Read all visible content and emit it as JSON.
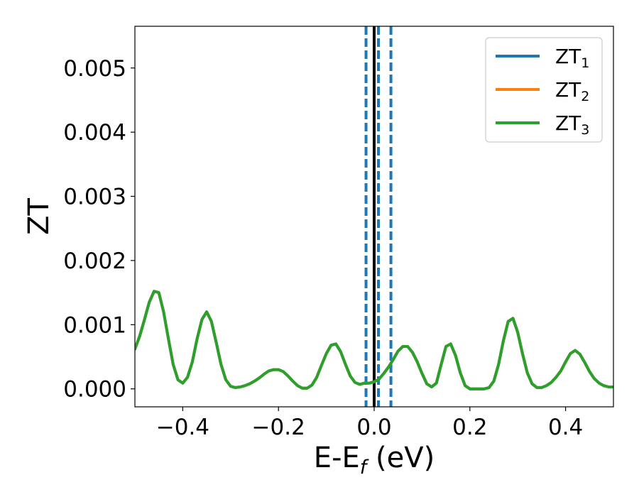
{
  "chart_data": {
    "type": "line",
    "xlabel_main": "E-E",
    "xlabel_sub": "f",
    "xlabel_unit": " (eV)",
    "ylabel": "ZT",
    "xlim": [
      -0.5,
      0.5
    ],
    "ylim": [
      -0.00028,
      0.00565
    ],
    "x_ticks": [
      -0.4,
      -0.2,
      0.0,
      0.2,
      0.4
    ],
    "x_tick_labels": [
      "−0.4",
      "−0.2",
      "0.0",
      "0.2",
      "0.4"
    ],
    "y_ticks": [
      0.0,
      0.001,
      0.002,
      0.003,
      0.004,
      0.005
    ],
    "y_tick_labels": [
      "0.000",
      "0.001",
      "0.002",
      "0.003",
      "0.004",
      "0.005"
    ],
    "grid": false,
    "legend_placement": "top-right",
    "colors": {
      "ZT1": "#1f77b4",
      "ZT2": "#ff7f0e",
      "ZT3": "#2ca02c",
      "fermi": "#000000",
      "dashed": "#1f77b4"
    },
    "vertical_lines": [
      {
        "x": 0.0,
        "style": "solid",
        "color": "#000000"
      },
      {
        "x": -0.017,
        "style": "dashed",
        "color": "#1f77b4"
      },
      {
        "x": 0.009,
        "style": "dashed",
        "color": "#1f77b4"
      },
      {
        "x": 0.035,
        "style": "dashed",
        "color": "#1f77b4"
      }
    ],
    "series": [
      {
        "name_main": "ZT",
        "name_sub": "1",
        "color": "#1f77b4"
      },
      {
        "name_main": "ZT",
        "name_sub": "2",
        "color": "#ff7f0e"
      },
      {
        "name_main": "ZT",
        "name_sub": "3",
        "color": "#2ca02c"
      }
    ],
    "x": [
      -0.5,
      -0.49,
      -0.48,
      -0.47,
      -0.46,
      -0.45,
      -0.44,
      -0.43,
      -0.42,
      -0.41,
      -0.4,
      -0.39,
      -0.38,
      -0.37,
      -0.36,
      -0.35,
      -0.34,
      -0.33,
      -0.32,
      -0.31,
      -0.3,
      -0.29,
      -0.28,
      -0.27,
      -0.26,
      -0.25,
      -0.24,
      -0.23,
      -0.22,
      -0.21,
      -0.2,
      -0.19,
      -0.18,
      -0.17,
      -0.16,
      -0.15,
      -0.14,
      -0.13,
      -0.12,
      -0.11,
      -0.1,
      -0.09,
      -0.08,
      -0.07,
      -0.06,
      -0.05,
      -0.04,
      -0.03,
      -0.02,
      -0.01,
      0.0,
      0.01,
      0.02,
      0.03,
      0.04,
      0.05,
      0.06,
      0.07,
      0.08,
      0.09,
      0.1,
      0.11,
      0.12,
      0.13,
      0.14,
      0.15,
      0.16,
      0.17,
      0.18,
      0.19,
      0.2,
      0.21,
      0.22,
      0.23,
      0.24,
      0.25,
      0.26,
      0.27,
      0.28,
      0.29,
      0.3,
      0.31,
      0.32,
      0.33,
      0.34,
      0.35,
      0.36,
      0.37,
      0.38,
      0.39,
      0.4,
      0.41,
      0.42,
      0.43,
      0.44,
      0.45,
      0.46,
      0.47,
      0.48,
      0.49,
      0.5
    ],
    "y": [
      0.00062,
      0.00082,
      0.00108,
      0.00135,
      0.00152,
      0.0015,
      0.0012,
      0.00078,
      0.00038,
      0.00014,
      9e-05,
      0.00018,
      0.00042,
      0.00078,
      0.00108,
      0.0012,
      0.00105,
      0.00072,
      0.00038,
      0.00014,
      4e-05,
      2e-05,
      3e-05,
      5e-05,
      8e-05,
      0.00012,
      0.00017,
      0.00023,
      0.00028,
      0.0003,
      0.0003,
      0.00027,
      0.0002,
      0.00012,
      5e-05,
      1e-05,
      1e-05,
      6e-05,
      0.00018,
      0.00037,
      0.00055,
      0.00068,
      0.0007,
      0.00058,
      0.00038,
      0.0002,
      0.0001,
      7e-05,
      9e-05,
      9e-05,
      0.00011,
      0.00015,
      0.00024,
      0.00034,
      0.00046,
      0.00059,
      0.00066,
      0.00066,
      0.00057,
      0.00042,
      0.00024,
      8e-05,
      3e-05,
      9e-05,
      0.00038,
      0.00066,
      0.0007,
      0.00052,
      0.00025,
      5e-05,
      0.0,
      0.0,
      0.0,
      0.0,
      2e-05,
      0.00012,
      0.00038,
      0.00075,
      0.00105,
      0.0011,
      0.00088,
      0.00055,
      0.00025,
      8e-05,
      2e-05,
      2e-05,
      5e-05,
      0.0001,
      0.00018,
      0.00028,
      0.00042,
      0.00055,
      0.0006,
      0.00054,
      0.00041,
      0.00027,
      0.00016,
      9e-05,
      5e-05,
      3e-05,
      3e-05
    ]
  }
}
